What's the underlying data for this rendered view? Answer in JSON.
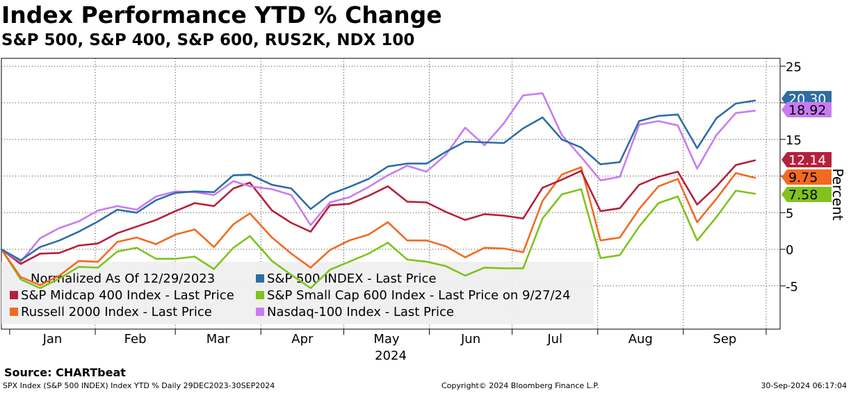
{
  "title": "Index Performance YTD % Change",
  "subtitle": "S&P 500, S&P 400, S&P 600, RUS2K, NDX 100",
  "source": "Source: CHARTbeat",
  "footer": {
    "left": "SPX Index (S&P 500 INDEX) Index YTD %  Daily 29DEC2023-30SEP2024",
    "center": "Copyright© 2024 Bloomberg Finance L.P.",
    "right": "30-Sep-2024 06:17:04"
  },
  "chart_data": {
    "type": "line",
    "title": "Index Performance YTD % Change",
    "subtitle": "S&P 500, S&P 400, S&P 600, RUS2K, NDX 100",
    "ylabel": "Percent",
    "year_label": "2024",
    "ylim": [
      -10,
      26
    ],
    "yticks": [
      -5,
      0,
      5,
      10,
      15,
      20,
      25
    ],
    "months": [
      "Jan",
      "Feb",
      "Mar",
      "Apr",
      "May",
      "Jun",
      "Jul",
      "Aug",
      "Sep"
    ],
    "x_dates": [
      "2023-12-29",
      "2024-01-05",
      "2024-01-12",
      "2024-01-19",
      "2024-01-26",
      "2024-02-02",
      "2024-02-09",
      "2024-02-16",
      "2024-02-23",
      "2024-03-01",
      "2024-03-08",
      "2024-03-15",
      "2024-03-22",
      "2024-03-28",
      "2024-04-05",
      "2024-04-12",
      "2024-04-19",
      "2024-04-26",
      "2024-05-03",
      "2024-05-10",
      "2024-05-17",
      "2024-05-24",
      "2024-05-31",
      "2024-06-07",
      "2024-06-14",
      "2024-06-21",
      "2024-06-28",
      "2024-07-05",
      "2024-07-12",
      "2024-07-19",
      "2024-07-26",
      "2024-08-02",
      "2024-08-09",
      "2024-08-16",
      "2024-08-23",
      "2024-08-30",
      "2024-09-06",
      "2024-09-13",
      "2024-09-20",
      "2024-09-27"
    ],
    "legend_header": "Normalized As Of 12/29/2023",
    "legend_position": "bottom-left",
    "grid": true,
    "series": [
      {
        "name": "S&P 500 INDEX - Last Price",
        "color": "#2e6da4",
        "last": "20.30",
        "values": [
          0,
          -1.5,
          0.3,
          1.2,
          2.4,
          3.8,
          5.4,
          5.0,
          6.7,
          7.7,
          7.9,
          7.8,
          10.1,
          10.2,
          8.8,
          8.3,
          5.5,
          7.5,
          8.5,
          9.6,
          11.3,
          11.7,
          11.7,
          13.3,
          14.7,
          14.6,
          14.5,
          16.5,
          18.0,
          15.0,
          13.9,
          11.6,
          11.9,
          17.5,
          18.2,
          18.4,
          13.8,
          17.9,
          19.9,
          20.3
        ]
      },
      {
        "name": "S&P Midcap 400 Index - Last Price",
        "color": "#b5203c",
        "last": "12.14",
        "values": [
          0,
          -2.0,
          -0.6,
          -0.5,
          0.5,
          0.8,
          2.2,
          3.1,
          4.0,
          5.2,
          6.3,
          5.9,
          8.3,
          9.1,
          5.3,
          3.6,
          2.4,
          6.0,
          6.2,
          7.3,
          8.6,
          6.5,
          6.4,
          5.1,
          4.0,
          4.8,
          4.6,
          4.2,
          8.4,
          9.5,
          10.7,
          5.2,
          5.6,
          8.8,
          9.9,
          10.6,
          6.1,
          8.6,
          11.5,
          12.14
        ]
      },
      {
        "name": "Russell 2000 Index - Last Price",
        "color": "#f26a21",
        "last": "9.75",
        "values": [
          0,
          -3.8,
          -4.9,
          -3.6,
          -1.6,
          -1.7,
          1.0,
          1.6,
          0.7,
          2.0,
          2.7,
          0.3,
          3.4,
          4.9,
          1.6,
          -0.6,
          -2.5,
          -0.1,
          1.2,
          2.0,
          3.7,
          1.2,
          1.2,
          0.4,
          -1.1,
          0.2,
          0.1,
          -0.4,
          6.6,
          10.2,
          11.2,
          1.2,
          1.6,
          5.5,
          8.6,
          9.6,
          3.7,
          6.9,
          10.4,
          9.75
        ]
      },
      {
        "name": "S&P Small Cap 600 Index - Last Price on 9/27/24",
        "color": "#7fc31c",
        "last": "7.58",
        "values": [
          0,
          -4.1,
          -5.3,
          -4.0,
          -2.4,
          -2.5,
          -0.3,
          0.2,
          -1.3,
          -1.3,
          -1.0,
          -2.7,
          0.2,
          1.8,
          -1.6,
          -3.5,
          -5.3,
          -2.8,
          -1.7,
          -0.6,
          0.9,
          -1.4,
          -1.7,
          -2.3,
          -3.6,
          -2.5,
          -2.6,
          -2.6,
          4.2,
          7.5,
          8.2,
          -1.2,
          -0.8,
          3.1,
          6.3,
          7.2,
          1.2,
          4.4,
          8.0,
          7.58
        ]
      },
      {
        "name": "Nasdaq-100 Index - Last Price",
        "color": "#c77cf2",
        "last": "18.92",
        "values": [
          0,
          -1.7,
          1.5,
          2.9,
          3.8,
          5.3,
          5.9,
          5.4,
          7.2,
          7.9,
          7.8,
          7.4,
          9.3,
          8.6,
          8.2,
          7.4,
          3.3,
          6.4,
          7.1,
          8.5,
          10.1,
          11.4,
          10.6,
          12.9,
          16.6,
          14.2,
          17.2,
          21.0,
          21.3,
          15.6,
          12.6,
          9.4,
          9.9,
          17.0,
          17.5,
          16.9,
          11.0,
          15.6,
          18.6,
          18.92
        ]
      }
    ]
  }
}
